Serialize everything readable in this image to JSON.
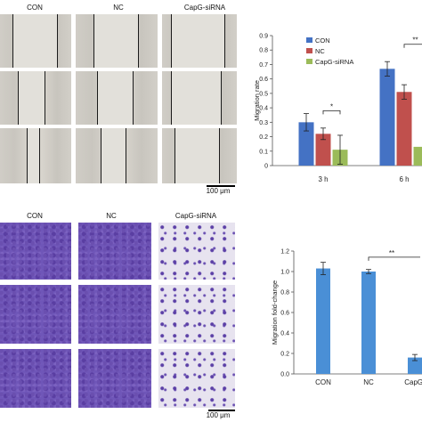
{
  "scratch_panel": {
    "columns": [
      "CON",
      "NC",
      "CapG-siRNA"
    ],
    "scale_bar": "100 μm"
  },
  "transwell_panel": {
    "columns": [
      "CON",
      "NC",
      "CapG-siRNA"
    ],
    "scale_bar": "100 μm"
  },
  "chart_data": [
    {
      "type": "bar",
      "ylabel": "Migration rate",
      "xlabel": "",
      "categories": [
        "3 h",
        "6 h"
      ],
      "ylim": [
        0,
        0.9
      ],
      "yticks": [
        "0",
        "0.1",
        "0.2",
        "0.3",
        "0.4",
        "0.5",
        "0.6",
        "0.7",
        "0.8",
        "0.9"
      ],
      "legend": {
        "placement": "top-left",
        "entries": [
          "CON",
          "NC",
          "CapG-siRNA"
        ]
      },
      "series": [
        {
          "name": "CON",
          "color": "#4472c4",
          "values": [
            0.3,
            0.67
          ],
          "errors": [
            0.06,
            0.05
          ]
        },
        {
          "name": "NC",
          "color": "#c0504d",
          "values": [
            0.22,
            0.51
          ],
          "errors": [
            0.04,
            0.05
          ]
        },
        {
          "name": "CapG-siRNA",
          "color": "#9bbb59",
          "values": [
            0.11,
            0.13
          ],
          "errors": [
            0.1,
            0.0
          ]
        }
      ],
      "annotations": [
        "*",
        "**"
      ]
    },
    {
      "type": "bar",
      "ylabel": "Migration fold-change",
      "xlabel": "",
      "categories": [
        "CON",
        "NC",
        "CapG-"
      ],
      "ylim": [
        0,
        1.2
      ],
      "yticks": [
        "0.0",
        "0.2",
        "0.4",
        "0.6",
        "0.8",
        "1.0",
        "1.2"
      ],
      "series": [
        {
          "color": "#4a8fd6",
          "values": [
            1.03,
            1.0,
            0.16
          ],
          "errors": [
            0.06,
            0.02,
            0.03
          ]
        }
      ],
      "annotations": [
        "**"
      ]
    }
  ]
}
